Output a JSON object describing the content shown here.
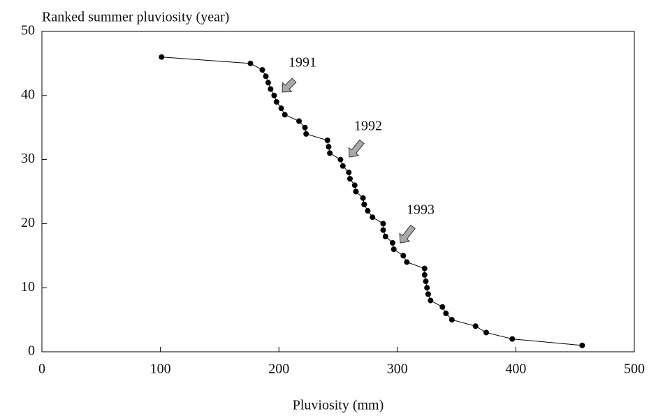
{
  "chart_data": {
    "type": "line",
    "title": "Ranked summer pluviosity (year)",
    "xlabel": "Pluviosity (mm)",
    "series": [
      {
        "name": null,
        "color": "#000000",
        "marker": true,
        "x": [
          101,
          176,
          186,
          189,
          191,
          193,
          196,
          198,
          202,
          205,
          217,
          222,
          223,
          241,
          242,
          243,
          252,
          254,
          259,
          260,
          264,
          265,
          271,
          272,
          275,
          279,
          288,
          288,
          290,
          296,
          297,
          305,
          308,
          323,
          323,
          324,
          325,
          326,
          328,
          338,
          341,
          346,
          366,
          375,
          397,
          456
        ],
        "values": [
          46,
          45,
          44,
          43,
          42,
          41,
          40,
          39,
          38,
          37,
          36,
          35,
          34,
          33,
          32,
          31,
          30,
          29,
          28,
          27,
          26,
          25,
          24,
          23,
          22,
          21,
          20,
          19,
          18,
          17,
          16,
          15,
          14,
          13,
          12,
          11,
          10,
          9,
          8,
          7,
          6,
          5,
          4,
          3,
          2,
          1
        ]
      }
    ],
    "annotations": [
      "1991",
      "1992",
      "1993"
    ],
    "xlim": [
      0,
      500
    ],
    "xticks": [
      0,
      100,
      200,
      300,
      400,
      500
    ],
    "ylim": [
      0,
      50
    ],
    "yticks": [
      0,
      10,
      20,
      30,
      40,
      50
    ],
    "grid": false
  }
}
